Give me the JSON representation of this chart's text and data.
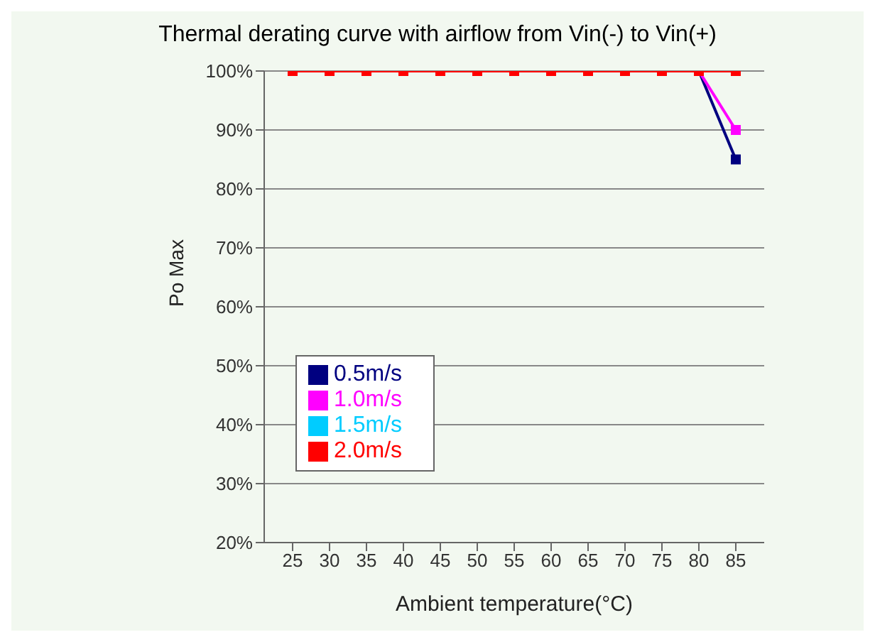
{
  "chart_data": {
    "type": "line",
    "title": "Thermal derating curve with airflow from Vin(-) to Vin(+)",
    "xlabel": "Ambient temperature(°C)",
    "ylabel": "Po Max",
    "categories": [
      "25",
      "30",
      "35",
      "40",
      "45",
      "50",
      "55",
      "60",
      "65",
      "70",
      "75",
      "80",
      "85"
    ],
    "series": [
      {
        "name": "0.5m/s",
        "color": "#000080",
        "values": [
          null,
          null,
          null,
          null,
          null,
          null,
          null,
          null,
          null,
          null,
          null,
          100,
          85
        ]
      },
      {
        "name": "1.0m/s",
        "color": "#ff00ff",
        "values": [
          null,
          null,
          null,
          null,
          null,
          null,
          null,
          null,
          null,
          null,
          null,
          100,
          90
        ]
      },
      {
        "name": "1.5m/s",
        "color": "#00ccff",
        "values": [
          null,
          null,
          null,
          null,
          null,
          null,
          null,
          null,
          null,
          null,
          null,
          null,
          null
        ]
      },
      {
        "name": "2.0m/s",
        "color": "#ff0000",
        "values": [
          100,
          100,
          100,
          100,
          100,
          100,
          100,
          100,
          100,
          100,
          100,
          100,
          100
        ]
      }
    ],
    "ylim": [
      20,
      100
    ],
    "yticks": [
      {
        "value": 20,
        "label": "20%"
      },
      {
        "value": 30,
        "label": "30%"
      },
      {
        "value": 40,
        "label": "40%"
      },
      {
        "value": 50,
        "label": "50%"
      },
      {
        "value": 60,
        "label": "60%"
      },
      {
        "value": 70,
        "label": "70%"
      },
      {
        "value": 80,
        "label": "80%"
      },
      {
        "value": 90,
        "label": "90%"
      },
      {
        "value": 100,
        "label": "100%"
      }
    ],
    "grid": "y",
    "legend": "bottom left",
    "marker": "square"
  }
}
